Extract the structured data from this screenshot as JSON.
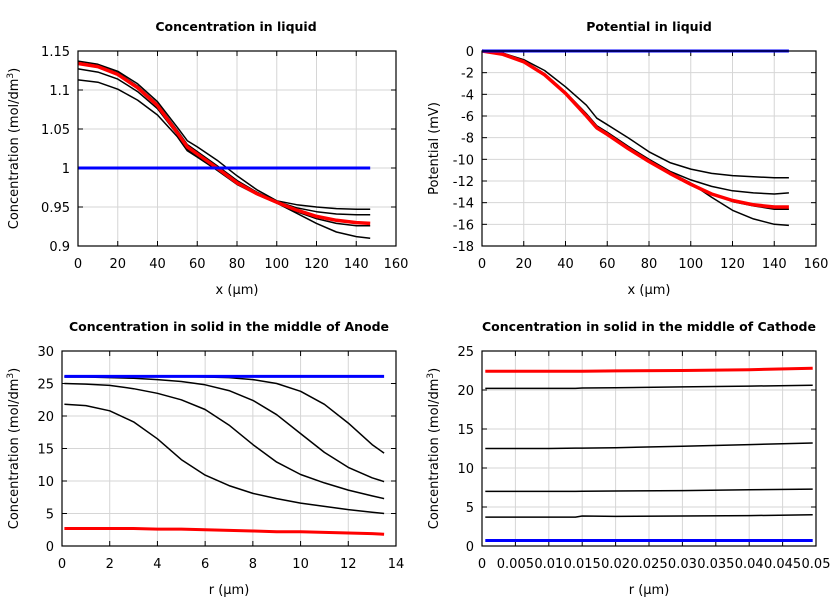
{
  "chart_data": [
    {
      "type": "line",
      "title": "Concentration in liquid",
      "xlabel": "x (µm)",
      "ylabel": "Concentration (mol/dm",
      "ylabel_sup": "3",
      "ylabel_end": ")",
      "xlim": [
        0,
        160
      ],
      "ylim": [
        0.9,
        1.15
      ],
      "xticks": [
        "0",
        "20",
        "40",
        "60",
        "80",
        "100",
        "120",
        "140",
        "160"
      ],
      "yticks": [
        "0.9",
        "0.95",
        "1",
        "1.05",
        "1.1",
        "1.15"
      ],
      "grid": true,
      "x": [
        0,
        10,
        20,
        30,
        40,
        50,
        55,
        60,
        70,
        80,
        90,
        100,
        110,
        120,
        130,
        140,
        147
      ],
      "series": [
        {
          "color": "#000000",
          "width": 1.5,
          "values": [
            1.137,
            1.133,
            1.124,
            1.108,
            1.085,
            1.052,
            1.035,
            1.027,
            1.01,
            0.99,
            0.972,
            0.958,
            0.953,
            0.95,
            0.948,
            0.947,
            0.947
          ]
        },
        {
          "color": "#000000",
          "width": 1.5,
          "values": [
            1.135,
            1.131,
            1.122,
            1.105,
            1.082,
            1.048,
            1.03,
            1.021,
            1.003,
            0.984,
            0.969,
            0.957,
            0.949,
            0.944,
            0.941,
            0.94,
            0.94
          ]
        },
        {
          "color": "#000000",
          "width": 1.5,
          "values": [
            1.127,
            1.123,
            1.114,
            1.098,
            1.076,
            1.043,
            1.024,
            1.016,
            0.998,
            0.98,
            0.966,
            0.955,
            0.944,
            0.935,
            0.929,
            0.926,
            0.926
          ]
        },
        {
          "color": "#000000",
          "width": 1.5,
          "values": [
            1.113,
            1.11,
            1.101,
            1.087,
            1.068,
            1.04,
            1.022,
            1.014,
            0.997,
            0.979,
            0.966,
            0.955,
            0.942,
            0.929,
            0.918,
            0.912,
            0.91
          ]
        },
        {
          "color": "#ff0000",
          "width": 3.5,
          "values": [
            1.134,
            1.13,
            1.12,
            1.103,
            1.08,
            1.045,
            1.027,
            1.018,
            1.0,
            0.981,
            0.967,
            0.956,
            0.946,
            0.938,
            0.933,
            0.93,
            0.929
          ]
        },
        {
          "color": "#0000ff",
          "width": 3,
          "values": [
            1,
            1,
            1,
            1,
            1,
            1,
            1,
            1,
            1,
            1,
            1,
            1,
            1,
            1,
            1,
            1,
            1
          ]
        }
      ]
    },
    {
      "type": "line",
      "title": "Potential in liquid",
      "xlabel": "x (µm)",
      "ylabel": "Potential (mV)",
      "xlim": [
        0,
        160
      ],
      "ylim": [
        -18,
        0
      ],
      "xticks": [
        "0",
        "20",
        "40",
        "60",
        "80",
        "100",
        "120",
        "140",
        "160"
      ],
      "yticks": [
        "-18",
        "-16",
        "-14",
        "-12",
        "-10",
        "-8",
        "-6",
        "-4",
        "-2",
        "0"
      ],
      "grid": true,
      "x": [
        0,
        10,
        20,
        30,
        40,
        50,
        55,
        60,
        70,
        80,
        90,
        100,
        110,
        120,
        130,
        140,
        147
      ],
      "series": [
        {
          "color": "#000000",
          "width": 1.5,
          "values": [
            0,
            -0.2,
            -0.8,
            -1.8,
            -3.3,
            -5.0,
            -6.2,
            -6.8,
            -8.0,
            -9.3,
            -10.3,
            -10.9,
            -11.3,
            -11.5,
            -11.6,
            -11.7,
            -11.7
          ]
        },
        {
          "color": "#000000",
          "width": 1.5,
          "values": [
            0,
            -0.2,
            -0.9,
            -2.1,
            -3.8,
            -5.8,
            -6.9,
            -7.5,
            -8.8,
            -10.0,
            -11.1,
            -11.9,
            -12.5,
            -12.9,
            -13.1,
            -13.2,
            -13.1
          ]
        },
        {
          "color": "#000000",
          "width": 1.5,
          "values": [
            0,
            -0.3,
            -1.0,
            -2.2,
            -3.9,
            -6.0,
            -7.0,
            -7.6,
            -8.9,
            -10.1,
            -11.2,
            -12.2,
            -13.2,
            -13.9,
            -14.3,
            -14.6,
            -14.6
          ]
        },
        {
          "color": "#000000",
          "width": 1.5,
          "values": [
            0,
            -0.3,
            -1.0,
            -2.2,
            -3.9,
            -6.0,
            -7.0,
            -7.6,
            -8.9,
            -10.1,
            -11.2,
            -12.2,
            -13.5,
            -14.7,
            -15.5,
            -16.0,
            -16.1
          ]
        },
        {
          "color": "#ff0000",
          "width": 3.5,
          "values": [
            0,
            -0.3,
            -1.0,
            -2.2,
            -3.9,
            -6.0,
            -7.1,
            -7.7,
            -9.0,
            -10.2,
            -11.3,
            -12.3,
            -13.2,
            -13.8,
            -14.2,
            -14.4,
            -14.4
          ]
        },
        {
          "color": "#0000ff",
          "width": 3,
          "values": [
            0,
            0,
            0,
            0,
            0,
            0,
            0,
            0,
            0,
            0,
            0,
            0,
            0,
            0,
            0,
            0,
            0
          ]
        }
      ]
    },
    {
      "type": "line",
      "title": "Concentration in solid in the middle of Anode",
      "xlabel": "r (µm)",
      "ylabel": "Concentration (mol/dm",
      "ylabel_sup": "3",
      "ylabel_end": ")",
      "xlim": [
        0,
        14
      ],
      "ylim": [
        0,
        30
      ],
      "xticks": [
        "0",
        "2",
        "4",
        "6",
        "8",
        "10",
        "12",
        "14"
      ],
      "yticks": [
        "0",
        "5",
        "10",
        "15",
        "20",
        "25",
        "30"
      ],
      "grid": true,
      "x": [
        0.1,
        1,
        2,
        3,
        4,
        5,
        6,
        7,
        8,
        9,
        10,
        11,
        12,
        13,
        13.5
      ],
      "series": [
        {
          "color": "#000000",
          "width": 1.5,
          "values": [
            26.1,
            26.1,
            26.1,
            26.1,
            26.1,
            26.1,
            26.0,
            25.9,
            25.6,
            25.0,
            23.8,
            21.8,
            18.9,
            15.6,
            14.3
          ]
        },
        {
          "color": "#000000",
          "width": 1.5,
          "values": [
            26.0,
            26.0,
            25.9,
            25.8,
            25.6,
            25.3,
            24.8,
            23.9,
            22.4,
            20.2,
            17.3,
            14.4,
            12.1,
            10.5,
            9.9
          ]
        },
        {
          "color": "#000000",
          "width": 1.5,
          "values": [
            25.0,
            24.9,
            24.7,
            24.2,
            23.5,
            22.5,
            21.0,
            18.6,
            15.6,
            12.9,
            11.0,
            9.7,
            8.6,
            7.7,
            7.3
          ]
        },
        {
          "color": "#000000",
          "width": 1.5,
          "values": [
            21.8,
            21.6,
            20.8,
            19.1,
            16.5,
            13.3,
            10.9,
            9.3,
            8.1,
            7.3,
            6.6,
            6.1,
            5.6,
            5.2,
            5.0
          ]
        },
        {
          "color": "#ff0000",
          "width": 3,
          "values": [
            2.7,
            2.7,
            2.7,
            2.7,
            2.6,
            2.6,
            2.5,
            2.4,
            2.3,
            2.2,
            2.2,
            2.1,
            2.0,
            1.9,
            1.8
          ]
        },
        {
          "color": "#0000ff",
          "width": 3,
          "values": [
            26.1,
            26.1,
            26.1,
            26.1,
            26.1,
            26.1,
            26.1,
            26.1,
            26.1,
            26.1,
            26.1,
            26.1,
            26.1,
            26.1,
            26.1
          ]
        }
      ]
    },
    {
      "type": "line",
      "title": "Concentration in solid in the middle of Cathode",
      "xlabel": "r (µm)",
      "ylabel": "Concentration (mol/dm",
      "ylabel_sup": "3",
      "ylabel_end": ")",
      "xlim": [
        0,
        0.05
      ],
      "ylim": [
        0,
        25
      ],
      "xticks": [
        "0",
        "0.005",
        "0.01",
        "0.015",
        "0.02",
        "0.025",
        "0.03",
        "0.035",
        "0.04",
        "0.045",
        "0.05"
      ],
      "yticks": [
        "0",
        "5",
        "10",
        "15",
        "20",
        "25"
      ],
      "grid": true,
      "x": [
        0.0005,
        0.01,
        0.014,
        0.015,
        0.02,
        0.03,
        0.04,
        0.0495
      ],
      "series": [
        {
          "color": "#000000",
          "width": 1.5,
          "values": [
            20.2,
            20.2,
            20.2,
            20.25,
            20.3,
            20.4,
            20.5,
            20.6
          ]
        },
        {
          "color": "#000000",
          "width": 1.5,
          "values": [
            12.5,
            12.5,
            12.55,
            12.55,
            12.6,
            12.8,
            13.0,
            13.2
          ]
        },
        {
          "color": "#000000",
          "width": 1.5,
          "values": [
            7.0,
            7.0,
            7.0,
            7.02,
            7.05,
            7.1,
            7.2,
            7.3
          ]
        },
        {
          "color": "#000000",
          "width": 1.5,
          "values": [
            3.7,
            3.7,
            3.7,
            3.85,
            3.8,
            3.85,
            3.9,
            4.0
          ]
        },
        {
          "color": "#ff0000",
          "width": 3,
          "values": [
            22.4,
            22.4,
            22.4,
            22.4,
            22.45,
            22.5,
            22.6,
            22.8
          ]
        },
        {
          "color": "#0000ff",
          "width": 3,
          "values": [
            0.7,
            0.7,
            0.7,
            0.7,
            0.7,
            0.7,
            0.7,
            0.7
          ]
        }
      ]
    }
  ]
}
